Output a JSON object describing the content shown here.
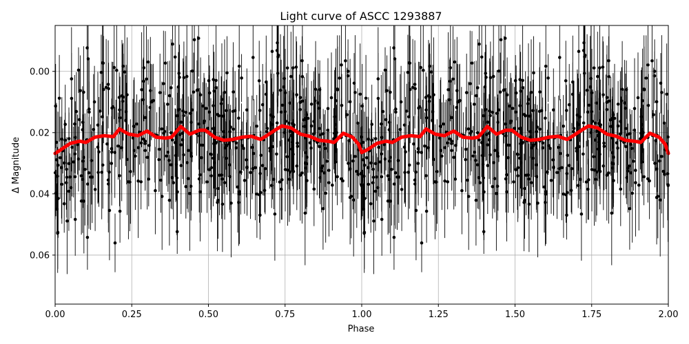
{
  "chart_data": {
    "type": "scatter",
    "title": "Light curve of ASCC 1293887",
    "xlabel": "Phase",
    "ylabel": "Δ Magnitude",
    "xlim": [
      0.0,
      2.0
    ],
    "ylim": [
      0.076,
      -0.015
    ],
    "y_inverted": true,
    "grid": true,
    "x_ticks": [
      {
        "value": 0.0,
        "label": "0.00"
      },
      {
        "value": 0.25,
        "label": "0.25"
      },
      {
        "value": 0.5,
        "label": "0.50"
      },
      {
        "value": 0.75,
        "label": "0.75"
      },
      {
        "value": 1.0,
        "label": "1.00"
      },
      {
        "value": 1.25,
        "label": "1.25"
      },
      {
        "value": 1.5,
        "label": "1.50"
      },
      {
        "value": 1.75,
        "label": "1.75"
      },
      {
        "value": 2.0,
        "label": "2.00"
      }
    ],
    "y_ticks": [
      {
        "value": 0.0,
        "label": "0.00"
      },
      {
        "value": 0.02,
        "label": "0.02"
      },
      {
        "value": 0.04,
        "label": "0.04"
      },
      {
        "value": 0.06,
        "label": "0.06"
      }
    ],
    "series": [
      {
        "style": "black points with vertical error bars",
        "color": "#000000",
        "mean_magnitude": 0.022,
        "point_scatter": 0.013,
        "typical_error": 0.013,
        "approx_points_per_unit_phase": 500,
        "repeats_every_phase": 1.0
      },
      {
        "style": "thick red binned trend line",
        "color": "#ff0000",
        "x": [
          0.0,
          0.02,
          0.05,
          0.08,
          0.1,
          0.13,
          0.16,
          0.19,
          0.21,
          0.24,
          0.27,
          0.3,
          0.33,
          0.36,
          0.38,
          0.41,
          0.44,
          0.47,
          0.49,
          0.52,
          0.55,
          0.58,
          0.61,
          0.64,
          0.67,
          0.69,
          0.72,
          0.74,
          0.77,
          0.8,
          0.83,
          0.86,
          0.89,
          0.91,
          0.94,
          0.97,
          0.99,
          1.0,
          1.02,
          1.05,
          1.08,
          1.1,
          1.13,
          1.16,
          1.19,
          1.21,
          1.24,
          1.27,
          1.3,
          1.33,
          1.36,
          1.38,
          1.41,
          1.44,
          1.47,
          1.49,
          1.52,
          1.55,
          1.58,
          1.61,
          1.64,
          1.67,
          1.69,
          1.72,
          1.74,
          1.77,
          1.8,
          1.83,
          1.86,
          1.89,
          1.91,
          1.94,
          1.97,
          1.99,
          2.0
        ],
        "y": [
          0.0268,
          0.0255,
          0.0235,
          0.0228,
          0.0232,
          0.0215,
          0.021,
          0.0213,
          0.0188,
          0.0205,
          0.021,
          0.0195,
          0.0215,
          0.0218,
          0.0215,
          0.018,
          0.0205,
          0.0192,
          0.0192,
          0.0215,
          0.0225,
          0.0222,
          0.0215,
          0.0212,
          0.0222,
          0.021,
          0.019,
          0.0178,
          0.0185,
          0.0205,
          0.0212,
          0.0225,
          0.0228,
          0.0232,
          0.0202,
          0.0215,
          0.0238,
          0.0265,
          0.0255,
          0.0235,
          0.0228,
          0.0232,
          0.0215,
          0.021,
          0.0213,
          0.0188,
          0.0205,
          0.021,
          0.0195,
          0.0215,
          0.0218,
          0.0215,
          0.018,
          0.0205,
          0.0192,
          0.0192,
          0.0215,
          0.0225,
          0.0222,
          0.0215,
          0.0212,
          0.0222,
          0.021,
          0.019,
          0.0178,
          0.0185,
          0.0205,
          0.0212,
          0.0225,
          0.0228,
          0.0232,
          0.0202,
          0.0215,
          0.0238,
          0.0268
        ]
      }
    ]
  }
}
